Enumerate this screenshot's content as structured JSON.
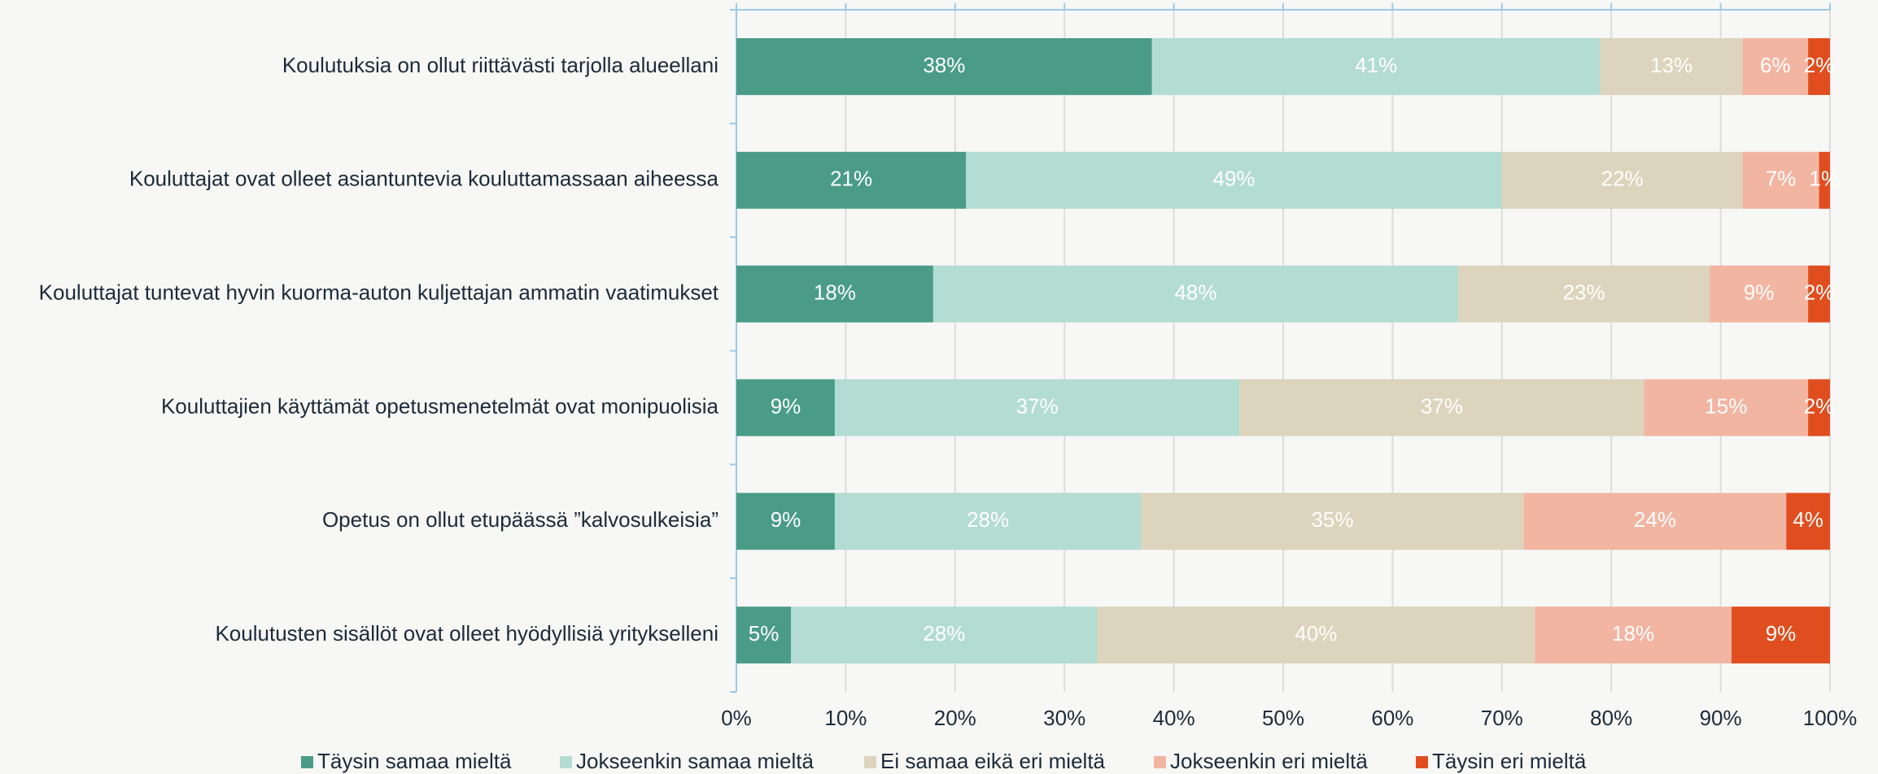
{
  "chart_data": {
    "type": "stacked-bar-horizontal",
    "categories": [
      "Koulutuksia on ollut riittävästi tarjolla alueellani",
      "Kouluttajat ovat olleet asiantuntevia kouluttamassaan aiheessa",
      "Kouluttajat tuntevat hyvin kuorma-auton kuljettajan ammatin vaatimukset",
      "Kouluttajien käyttämät opetusmenetelmät ovat monipuolisia",
      "Opetus on ollut etupäässä ”kalvosulkeisia”",
      "Koulutusten sisällöt ovat olleet hyödyllisiä yritykselleni"
    ],
    "series": [
      {
        "name": "Täysin samaa mieltä",
        "color": "#4a9c87",
        "values": [
          38,
          21,
          18,
          9,
          9,
          5
        ],
        "value_labels": [
          "38%",
          "21%",
          "18%",
          "9%",
          "9%",
          "5%"
        ]
      },
      {
        "name": "Jokseenkin samaa mieltä",
        "color": "#b3dcd3",
        "values": [
          41,
          49,
          48,
          37,
          28,
          28
        ],
        "value_labels": [
          "41%",
          "49%",
          "48%",
          "37%",
          "28%",
          "28%"
        ]
      },
      {
        "name": "Ei samaa eikä eri mieltä",
        "color": "#dcd4bc",
        "values": [
          13,
          22,
          23,
          37,
          35,
          40
        ],
        "value_labels": [
          "13%",
          "22%",
          "23%",
          "37%",
          "35%",
          "40%"
        ]
      },
      {
        "name": "Jokseenkin eri mieltä",
        "color": "#f2b5a2",
        "values": [
          6,
          7,
          9,
          15,
          24,
          18
        ],
        "value_labels": [
          "6%",
          "7%",
          "9%",
          "15%",
          "24%",
          "18%"
        ]
      },
      {
        "name": "Täysin eri mieltä",
        "color": "#e04e1f",
        "values": [
          2,
          1,
          2,
          2,
          4,
          9
        ],
        "value_labels": [
          "2%",
          "1%",
          "2%",
          "2%",
          "4%",
          "9%"
        ]
      }
    ],
    "xlim": [
      0,
      100
    ],
    "xticks": [
      {
        "value": 0,
        "label": "0%"
      },
      {
        "value": 10,
        "label": "10%"
      },
      {
        "value": 20,
        "label": "20%"
      },
      {
        "value": 30,
        "label": "30%"
      },
      {
        "value": 40,
        "label": "40%"
      },
      {
        "value": 50,
        "label": "50%"
      },
      {
        "value": 60,
        "label": "60%"
      },
      {
        "value": 70,
        "label": "70%"
      },
      {
        "value": 80,
        "label": "80%"
      },
      {
        "value": 90,
        "label": "90%"
      },
      {
        "value": 100,
        "label": "100%"
      }
    ],
    "grid": true,
    "legend": "bottom"
  }
}
